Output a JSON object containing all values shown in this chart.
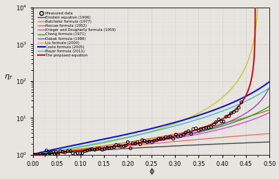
{
  "title": "",
  "xlabel": "ϕ",
  "ylabel": "η_r",
  "xlim": [
    0,
    0.5
  ],
  "ylim_log": [
    1.0,
    10000.0
  ],
  "legend_entries": [
    "Measured data",
    "Einstein equation (1906)",
    "Batchelor formula (1977)",
    "Roscoe formula (1952)",
    "Krieger and Dougherty formula (1959)",
    "Chong formula (1971)",
    "Dabak formula (1986)",
    "Liu formula (2000)",
    "Costa formula (2005)",
    "Boyer formula (2011)",
    "The proposed equation"
  ],
  "colors": {
    "einstein": "#444444",
    "batchelor": "#e87060",
    "roscoe": "#c87030",
    "kd": "#e040e0",
    "chong": "#20a020",
    "dabak": "#8844cc",
    "liu": "#c8c820",
    "costa": "#1010cc",
    "boyer": "#20c8c8",
    "proposed": "#cc1010"
  },
  "phi_m_roscoe": 0.74,
  "phi_m_kd": 0.605,
  "phi_m_chong": 0.605,
  "phi_m_dabak": 0.52,
  "phi_m_liu": 0.48,
  "phi_m_costa": 0.605,
  "phi_m_boyer": 0.605,
  "phi_m_proposed": 0.47,
  "background_color": "#e8e4e0"
}
